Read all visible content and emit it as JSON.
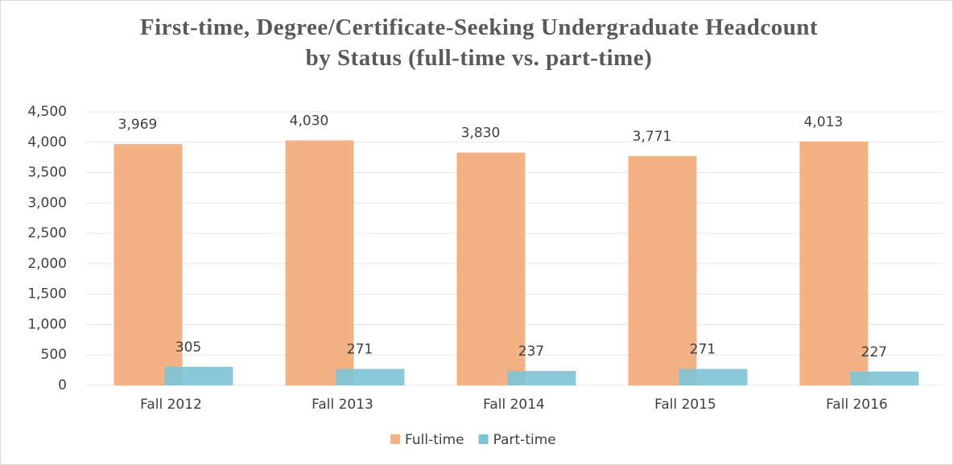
{
  "chart_data": {
    "type": "bar",
    "title": "First-time, Degree/Certificate-Seeking Undergraduate Headcount by Status (full-time vs. part-time)",
    "categories": [
      "Fall 2012",
      "Fall 2013",
      "Fall 2014",
      "Fall 2015",
      "Fall 2016"
    ],
    "series": [
      {
        "name": "Full-time",
        "color": "#f4b183",
        "values": [
          3969,
          4030,
          3830,
          3771,
          4013
        ],
        "value_labels": [
          "3,969",
          "4,030",
          "3,830",
          "3,771",
          "4,013"
        ]
      },
      {
        "name": "Part-time",
        "color": "#7fc4d6",
        "values": [
          305,
          271,
          237,
          271,
          227
        ]
      }
    ],
    "ylim": [
      0,
      4500
    ],
    "yticks": [
      0,
      500,
      {
        "value": 1000,
        "label": "1,000"
      },
      {
        "value": 1500,
        "label": "1,500"
      },
      {
        "value": 2000,
        "label": "2,000"
      },
      {
        "value": 2500,
        "label": "2,500"
      },
      {
        "value": 3000,
        "label": "3,000"
      },
      {
        "value": 3500,
        "label": "3,500"
      },
      {
        "value": 4000,
        "label": "4,000"
      },
      {
        "value": 4500,
        "label": "4,500"
      }
    ],
    "grid": true,
    "legend": "bottom"
  }
}
